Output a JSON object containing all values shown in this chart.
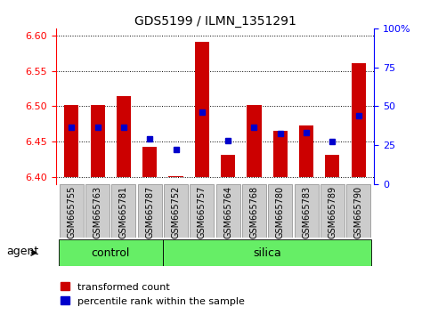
{
  "title": "GDS5199 / ILMN_1351291",
  "samples": [
    "GSM665755",
    "GSM665763",
    "GSM665781",
    "GSM665787",
    "GSM665752",
    "GSM665757",
    "GSM665764",
    "GSM665768",
    "GSM665780",
    "GSM665783",
    "GSM665789",
    "GSM665790"
  ],
  "n_control": 4,
  "n_silica": 8,
  "red_values": [
    6.502,
    6.502,
    6.514,
    6.443,
    6.401,
    6.591,
    6.432,
    6.502,
    6.465,
    6.473,
    6.432,
    6.561
  ],
  "blue_values": [
    6.471,
    6.471,
    6.471,
    6.454,
    6.439,
    6.492,
    6.452,
    6.471,
    6.462,
    6.463,
    6.451,
    6.487
  ],
  "ylim_left": [
    6.39,
    6.61
  ],
  "ylim_right": [
    0,
    100
  ],
  "yticks_left": [
    6.4,
    6.45,
    6.5,
    6.55,
    6.6
  ],
  "yticks_right": [
    0,
    25,
    50,
    75,
    100
  ],
  "bar_bottom": 6.4,
  "bar_color": "#cc0000",
  "dot_color": "#0000cc",
  "group_color": "#66ee66",
  "sample_bg": "#cccccc",
  "legend_red": "transformed count",
  "legend_blue": "percentile rank within the sample",
  "agent_label": "agent",
  "bar_width": 0.55,
  "dot_size": 30,
  "figsize": [
    4.83,
    3.54
  ],
  "dpi": 100
}
